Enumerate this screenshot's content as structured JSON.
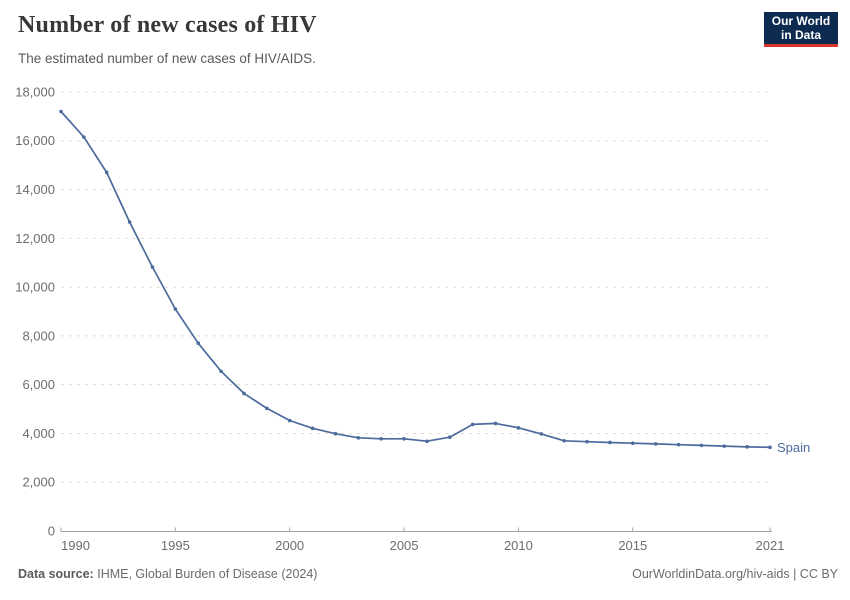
{
  "header": {
    "title": "Number of new cases of HIV",
    "subtitle": "The estimated number of new cases of HIV/AIDS.",
    "logo": {
      "line1": "Our World",
      "line2": "in Data",
      "bg_color": "#0d2b50",
      "accent_color": "#d8352e"
    }
  },
  "chart_data": {
    "type": "line",
    "title": "Number of new cases of HIV",
    "subtitle": "The estimated number of new cases of HIV/AIDS.",
    "xlabel": "",
    "ylabel": "",
    "xlim": [
      1990,
      2021
    ],
    "ylim": [
      0,
      18000
    ],
    "grid": "horizontal-dashed",
    "legend": "end-of-line-label",
    "x": [
      1990,
      1991,
      1992,
      1993,
      1994,
      1995,
      1996,
      1997,
      1998,
      1999,
      2000,
      2001,
      2002,
      2003,
      2004,
      2005,
      2006,
      2007,
      2008,
      2009,
      2010,
      2011,
      2012,
      2013,
      2014,
      2015,
      2016,
      2017,
      2018,
      2019,
      2020,
      2021
    ],
    "series": [
      {
        "name": "Spain",
        "color": "#4c6a9c",
        "values": [
          17200,
          16150,
          14700,
          12670,
          10820,
          9100,
          7700,
          6550,
          5640,
          5030,
          4530,
          4210,
          3990,
          3820,
          3780,
          3780,
          3680,
          3845,
          4370,
          4410,
          4230,
          3980,
          3700,
          3660,
          3630,
          3600,
          3570,
          3540,
          3510,
          3480,
          3450,
          3430
        ]
      }
    ],
    "x_ticks": [
      1990,
      1995,
      2000,
      2005,
      2010,
      2015,
      2021
    ],
    "y_ticks": [
      0,
      2000,
      4000,
      6000,
      8000,
      10000,
      12000,
      14000,
      16000,
      18000
    ],
    "colors": {
      "line": "#4c6a9c",
      "gridline": "#dcdcdc",
      "axis": "#a3a3a3",
      "tick_label": "#6e6e6e"
    }
  },
  "footer": {
    "datasource_label": "Data source:",
    "datasource_text": "IHME, Global Burden of Disease (2024)",
    "credit": "OurWorldinData.org/hiv-aids | CC BY"
  }
}
